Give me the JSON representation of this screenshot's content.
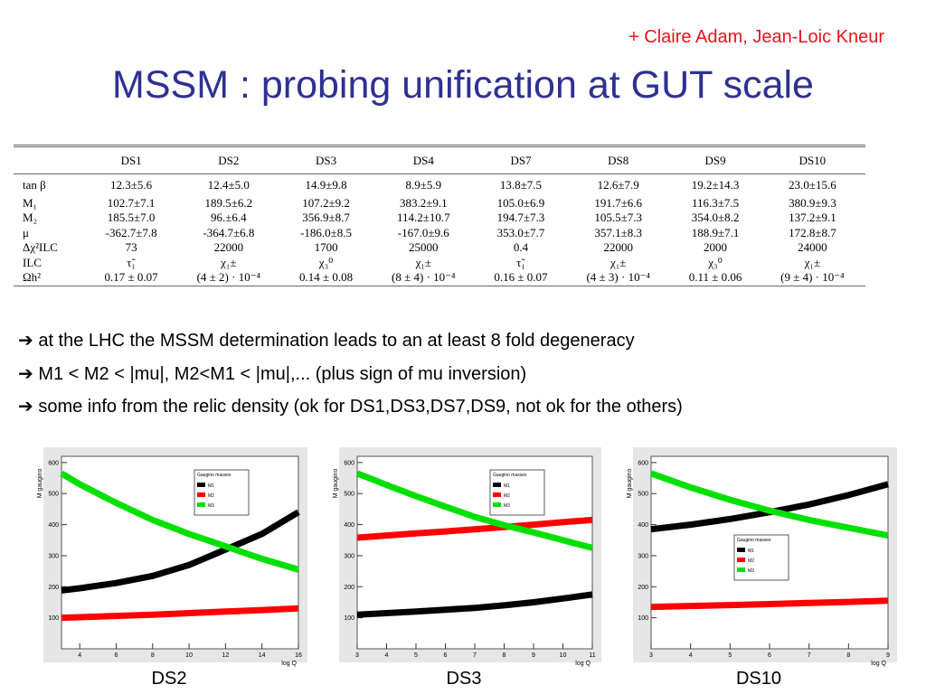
{
  "header": {
    "authors": "+ Claire Adam, Jean-Loic Kneur",
    "title": "MSSM : probing unification at GUT scale"
  },
  "table": {
    "columns": [
      "DS1",
      "DS2",
      "DS3",
      "DS4",
      "DS7",
      "DS8",
      "DS9",
      "DS10"
    ],
    "rows": [
      {
        "label": "tan β",
        "cells": [
          "12.3±5.6",
          "12.4±5.0",
          "14.9±9.8",
          "8.9±5.9",
          "13.8±7.5",
          "12.6±7.9",
          "19.2±14.3",
          "23.0±15.6"
        ]
      },
      {
        "label": "M₁",
        "cells": [
          "102.7±7.1",
          "189.5±6.2",
          "107.2±9.2",
          "383.2±9.1",
          "105.0±6.9",
          "191.7±6.6",
          "116.3±7.5",
          "380.9±9.3"
        ]
      },
      {
        "label": "M₂",
        "cells": [
          "185.5±7.0",
          "96.±6.4",
          "356.9±8.7",
          "114.2±10.7",
          "194.7±7.3",
          "105.5±7.3",
          "354.0±8.2",
          "137.2±9.1"
        ]
      },
      {
        "label": "μ",
        "cells": [
          "-362.7±7.8",
          "-364.7±6.8",
          "-186.0±8.5",
          "-167.0±9.6",
          "353.0±7.7",
          "357.1±8.3",
          "188.9±7.1",
          "172.8±8.7"
        ]
      },
      {
        "label": "Δχ²ILC",
        "cells": [
          "73",
          "22000",
          "1700",
          "25000",
          "0.4",
          "22000",
          "2000",
          "24000"
        ]
      },
      {
        "label": "ILC",
        "cells": [
          "τ̃₁",
          "χ₁±",
          "χ₃⁰",
          "χ₁±",
          "τ̃₁",
          "χ₁±",
          "χ₃⁰",
          "χ₁±"
        ]
      },
      {
        "label": "Ωh²",
        "cells": [
          "0.17 ± 0.07",
          "(4 ± 2) · 10⁻⁴",
          "0.14 ± 0.08",
          "(8 ± 4) · 10⁻⁴",
          "0.16 ± 0.07",
          "(4 ± 3) · 10⁻⁴",
          "0.11 ± 0.06",
          "(9 ± 4) · 10⁻⁴"
        ]
      }
    ]
  },
  "bullets": [
    "➔ at the LHC the MSSM determination leads to an at least 8 fold degeneracy",
    "➔ M1 < M2 < |mu|, M2<M1 < |mu|,...  (plus sign of mu inversion)",
    "➔ some info from the relic density  (ok for DS1,DS3,DS7,DS9, not ok for the others)"
  ],
  "charts": [
    {
      "type": "line",
      "caption": "DS2",
      "x_label": "log Q",
      "y_label": "M gaugino",
      "legend_title": "Gaugino masses",
      "legend": "top",
      "x": [
        3,
        4,
        6,
        8,
        10,
        12,
        14,
        16
      ],
      "xlim": [
        3,
        16
      ],
      "xticks": [
        4,
        6,
        8,
        10,
        12,
        14,
        16
      ],
      "ylim": [
        0,
        620
      ],
      "yticks": [
        100,
        200,
        300,
        400,
        500,
        600
      ],
      "series": [
        {
          "name": "M1",
          "color": "#000000",
          "values": [
            188,
            195,
            212,
            235,
            270,
            320,
            370,
            440
          ]
        },
        {
          "name": "M2",
          "color": "#ff0000",
          "values": [
            100,
            102,
            106,
            110,
            115,
            120,
            125,
            130
          ]
        },
        {
          "name": "M3",
          "color": "#00e000",
          "values": [
            565,
            530,
            470,
            415,
            370,
            330,
            290,
            255
          ]
        }
      ]
    },
    {
      "type": "line",
      "caption": "DS3",
      "x_label": "log Q",
      "y_label": "M gaugino",
      "legend_title": "Gaugino masses",
      "legend": "top",
      "x": [
        3,
        4,
        5,
        6,
        7,
        8,
        9,
        10,
        11
      ],
      "xlim": [
        3,
        11
      ],
      "xticks": [
        3,
        4,
        5,
        6,
        7,
        8,
        9,
        10,
        11
      ],
      "ylim": [
        0,
        620
      ],
      "yticks": [
        100,
        200,
        300,
        400,
        500,
        600
      ],
      "series": [
        {
          "name": "M1",
          "color": "#000000",
          "values": [
            110,
            115,
            120,
            126,
            132,
            140,
            150,
            162,
            175
          ]
        },
        {
          "name": "M2",
          "color": "#ff0000",
          "values": [
            358,
            365,
            372,
            378,
            385,
            392,
            400,
            408,
            415
          ]
        },
        {
          "name": "M3",
          "color": "#00e000",
          "values": [
            565,
            528,
            492,
            458,
            425,
            398,
            375,
            350,
            325
          ]
        }
      ]
    },
    {
      "type": "line",
      "caption": "DS10",
      "x_label": "log Q",
      "y_label": "M gaugino",
      "legend_title": "Gaugino masses",
      "legend": "center",
      "x": [
        3,
        4,
        5,
        6,
        7,
        8,
        9
      ],
      "xlim": [
        3,
        9
      ],
      "xticks": [
        3,
        4,
        5,
        6,
        7,
        8,
        9
      ],
      "ylim": [
        0,
        620
      ],
      "yticks": [
        100,
        200,
        300,
        400,
        500,
        600
      ],
      "series": [
        {
          "name": "M1",
          "color": "#000000",
          "values": [
            385,
            400,
            418,
            440,
            465,
            495,
            530
          ]
        },
        {
          "name": "M2",
          "color": "#ff0000",
          "values": [
            135,
            138,
            141,
            144,
            148,
            151,
            155
          ]
        },
        {
          "name": "M3",
          "color": "#00e000",
          "values": [
            565,
            520,
            480,
            445,
            415,
            390,
            365
          ]
        }
      ]
    }
  ]
}
